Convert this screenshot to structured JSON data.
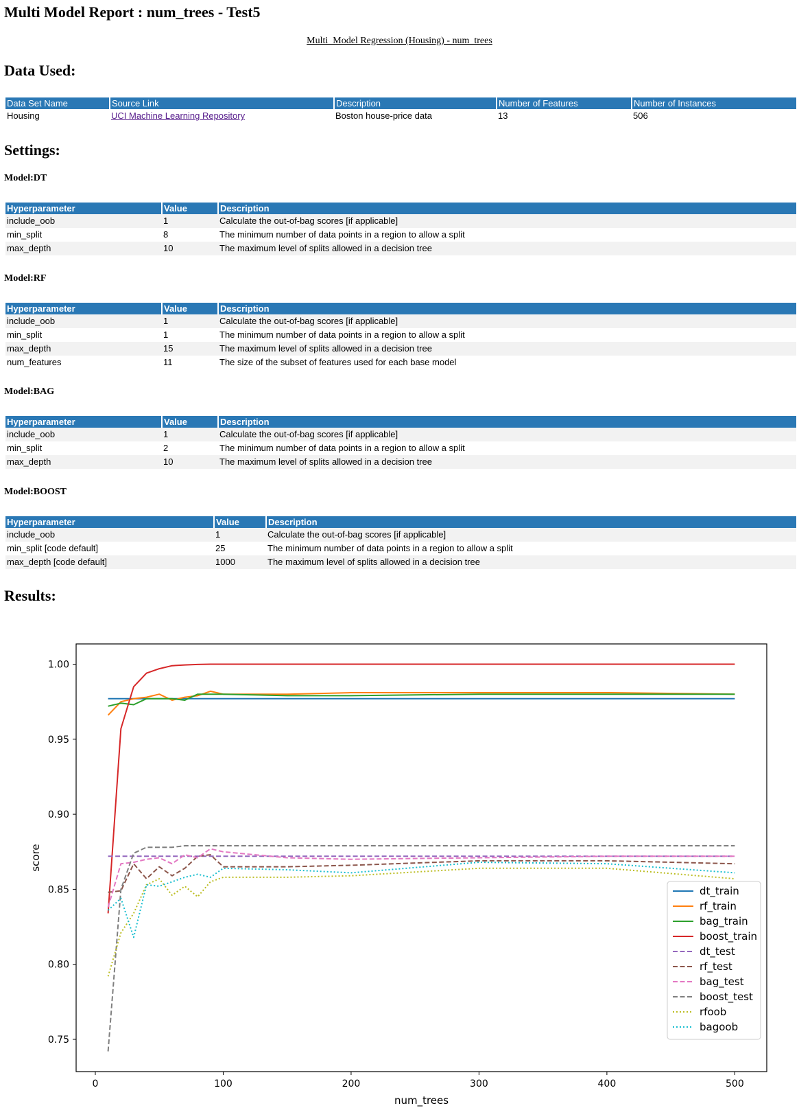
{
  "title": "Multi Model Report : num_trees - Test5",
  "subtitle": "Multi_Model Regression (Housing) - num_trees",
  "sections": {
    "data_used": "Data Used:",
    "settings": "Settings:",
    "results": "Results:"
  },
  "data_table": {
    "headers": [
      "Data Set Name",
      "Source Link",
      "Description",
      "Number of Features",
      "Number of Instances"
    ],
    "row": {
      "name": "Housing",
      "source": "UCI Machine Learning Repository",
      "description": "Boston house-price data",
      "features": "13",
      "instances": "506"
    }
  },
  "models": [
    {
      "title": "Model:DT",
      "headers": [
        "Hyperparameter",
        "Value",
        "Description"
      ],
      "rows": [
        {
          "param": "include_oob",
          "value": "1",
          "description": "Calculate the out-of-bag scores [if applicable]"
        },
        {
          "param": "min_split",
          "value": "8",
          "description": "The minimum number of data points in a region to allow a split"
        },
        {
          "param": "max_depth",
          "value": "10",
          "description": "The maximum level of splits allowed in a decision tree"
        }
      ]
    },
    {
      "title": "Model:RF",
      "headers": [
        "Hyperparameter",
        "Value",
        "Description"
      ],
      "rows": [
        {
          "param": "include_oob",
          "value": "1",
          "description": "Calculate the out-of-bag scores [if applicable]"
        },
        {
          "param": "min_split",
          "value": "1",
          "description": "The minimum number of data points in a region to allow a split"
        },
        {
          "param": "max_depth",
          "value": "15",
          "description": "The maximum level of splits allowed in a decision tree"
        },
        {
          "param": "num_features",
          "value": "11",
          "description": "The size of the subset of features used for each base model"
        }
      ]
    },
    {
      "title": "Model:BAG",
      "headers": [
        "Hyperparameter",
        "Value",
        "Description"
      ],
      "rows": [
        {
          "param": "include_oob",
          "value": "1",
          "description": "Calculate the out-of-bag scores [if applicable]"
        },
        {
          "param": "min_split",
          "value": "2",
          "description": "The minimum number of data points in a region to allow a split"
        },
        {
          "param": "max_depth",
          "value": "10",
          "description": "The maximum level of splits allowed in a decision tree"
        }
      ]
    },
    {
      "title": "Model:BOOST",
      "headers": [
        "Hyperparameter",
        "Value",
        "Description"
      ],
      "rows": [
        {
          "param": "include_oob",
          "value": "1",
          "description": "Calculate the out-of-bag scores [if applicable]"
        },
        {
          "param": "min_split [code default]",
          "value": "25",
          "description": "The minimum number of data points in a region to allow a split"
        },
        {
          "param": "max_depth [code default]",
          "value": "1000",
          "description": "The maximum level of splits allowed in a decision tree"
        }
      ]
    }
  ],
  "chart_data": {
    "type": "line",
    "title": "",
    "xlabel": "num_trees",
    "ylabel": "score",
    "xlim": [
      -15,
      525
    ],
    "ylim": [
      0.7285,
      1.0135
    ],
    "xticks": [
      0,
      100,
      200,
      300,
      400,
      500
    ],
    "yticks": [
      0.75,
      0.8,
      0.85,
      0.9,
      0.95,
      1.0
    ],
    "ytick_labels": [
      "0.75",
      "0.80",
      "0.85",
      "0.90",
      "0.95",
      "1.00"
    ],
    "legend_position": "lower right",
    "grid": false,
    "series": [
      {
        "name": "dt_train",
        "color": "#1f77b4",
        "style": "solid",
        "x": [
          10,
          500
        ],
        "y": [
          0.977,
          0.977
        ]
      },
      {
        "name": "rf_train",
        "color": "#ff7f0e",
        "style": "solid",
        "x": [
          10,
          20,
          30,
          40,
          50,
          60,
          70,
          80,
          90,
          100,
          150,
          200,
          300,
          400,
          500
        ],
        "y": [
          0.966,
          0.975,
          0.977,
          0.978,
          0.98,
          0.976,
          0.978,
          0.979,
          0.982,
          0.98,
          0.98,
          0.981,
          0.981,
          0.981,
          0.98
        ]
      },
      {
        "name": "bag_train",
        "color": "#2ca02c",
        "style": "solid",
        "x": [
          10,
          20,
          30,
          40,
          50,
          60,
          70,
          80,
          90,
          100,
          150,
          200,
          300,
          400,
          500
        ],
        "y": [
          0.972,
          0.974,
          0.973,
          0.977,
          0.977,
          0.977,
          0.976,
          0.98,
          0.98,
          0.98,
          0.979,
          0.979,
          0.98,
          0.98,
          0.98
        ]
      },
      {
        "name": "boost_train",
        "color": "#d62728",
        "style": "solid",
        "x": [
          10,
          20,
          30,
          40,
          50,
          60,
          70,
          80,
          90,
          100,
          200,
          300,
          400,
          500
        ],
        "y": [
          0.834,
          0.957,
          0.985,
          0.994,
          0.997,
          0.999,
          0.9995,
          0.9998,
          1.0,
          1.0,
          1.0,
          1.0,
          1.0,
          1.0
        ]
      },
      {
        "name": "dt_test",
        "color": "#9467bd",
        "style": "dashed",
        "x": [
          10,
          500
        ],
        "y": [
          0.872,
          0.872
        ]
      },
      {
        "name": "rf_test",
        "color": "#8c564b",
        "style": "dashed",
        "x": [
          10,
          20,
          30,
          40,
          50,
          60,
          70,
          80,
          90,
          100,
          150,
          200,
          300,
          400,
          500
        ],
        "y": [
          0.848,
          0.849,
          0.867,
          0.857,
          0.865,
          0.859,
          0.864,
          0.872,
          0.873,
          0.865,
          0.865,
          0.866,
          0.869,
          0.869,
          0.867
        ]
      },
      {
        "name": "bag_test",
        "color": "#e377c2",
        "style": "dashed",
        "x": [
          10,
          20,
          30,
          40,
          50,
          60,
          70,
          80,
          90,
          100,
          150,
          200,
          300,
          400,
          500
        ],
        "y": [
          0.838,
          0.867,
          0.868,
          0.87,
          0.871,
          0.867,
          0.873,
          0.871,
          0.877,
          0.875,
          0.871,
          0.87,
          0.871,
          0.872,
          0.872
        ]
      },
      {
        "name": "boost_test",
        "color": "#7f7f7f",
        "style": "dashed",
        "x": [
          10,
          20,
          30,
          40,
          50,
          60,
          70,
          80,
          90,
          100,
          150,
          200,
          300,
          400,
          500
        ],
        "y": [
          0.742,
          0.85,
          0.874,
          0.878,
          0.878,
          0.878,
          0.879,
          0.879,
          0.879,
          0.879,
          0.879,
          0.879,
          0.879,
          0.879,
          0.879
        ]
      },
      {
        "name": "rfoob",
        "color": "#bcbd22",
        "style": "dotted",
        "x": [
          10,
          20,
          30,
          40,
          50,
          60,
          70,
          80,
          90,
          100,
          150,
          200,
          300,
          400,
          500
        ],
        "y": [
          0.792,
          0.821,
          0.834,
          0.853,
          0.857,
          0.846,
          0.852,
          0.845,
          0.855,
          0.858,
          0.858,
          0.859,
          0.864,
          0.864,
          0.857
        ]
      },
      {
        "name": "bagoob",
        "color": "#17becf",
        "style": "dotted",
        "x": [
          10,
          20,
          30,
          40,
          50,
          60,
          70,
          80,
          90,
          100,
          150,
          200,
          300,
          400,
          500
        ],
        "y": [
          0.836,
          0.844,
          0.818,
          0.853,
          0.852,
          0.855,
          0.858,
          0.86,
          0.858,
          0.864,
          0.863,
          0.861,
          0.868,
          0.867,
          0.861
        ]
      }
    ]
  }
}
